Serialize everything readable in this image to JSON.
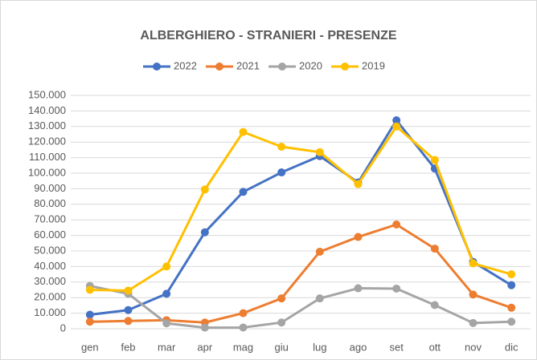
{
  "chart_data": {
    "type": "line",
    "title": "ALBERGHIERO - STRANIERI - PRESENZE",
    "categories": [
      "gen",
      "feb",
      "mar",
      "apr",
      "mag",
      "giu",
      "lug",
      "ago",
      "set",
      "ott",
      "nov",
      "dic"
    ],
    "series": [
      {
        "name": "2022",
        "color": "#4472c4",
        "values": [
          9000,
          12000,
          22500,
          62000,
          88000,
          100500,
          111000,
          94000,
          134000,
          103000,
          43000,
          28000
        ]
      },
      {
        "name": "2021",
        "color": "#ed7d31",
        "values": [
          4500,
          5000,
          5500,
          4000,
          10000,
          19500,
          49500,
          59000,
          67000,
          51500,
          22000,
          13500
        ]
      },
      {
        "name": "2020",
        "color": "#a5a5a5",
        "values": [
          27500,
          22500,
          3500,
          700,
          800,
          4000,
          19500,
          26000,
          25800,
          15200,
          3700,
          4500
        ]
      },
      {
        "name": "2019",
        "color": "#ffc000",
        "values": [
          25000,
          24500,
          40000,
          89500,
          126500,
          117000,
          113500,
          93000,
          130000,
          108500,
          42000,
          35000
        ]
      }
    ],
    "ylim": [
      0,
      150000
    ],
    "yticks": [
      0,
      {
        "value": 10000,
        "label": "10.000"
      },
      {
        "value": 20000,
        "label": "20.000"
      },
      {
        "value": 30000,
        "label": "30.000"
      },
      {
        "value": 40000,
        "label": "40.000"
      },
      {
        "value": 50000,
        "label": "50.000"
      },
      {
        "value": 60000,
        "label": "60.000"
      },
      {
        "value": 70000,
        "label": "70.000"
      },
      {
        "value": 80000,
        "label": "80.000"
      },
      {
        "value": 90000,
        "label": "90.000"
      },
      {
        "value": 100000,
        "label": "100.000"
      },
      {
        "value": 110000,
        "label": "110.000"
      },
      {
        "value": 120000,
        "label": "120.000"
      },
      {
        "value": 130000,
        "label": "130.000"
      },
      {
        "value": 140000,
        "label": "140.000"
      },
      {
        "value": 150000,
        "label": "150.000"
      }
    ],
    "grid": true,
    "legend": "top"
  }
}
